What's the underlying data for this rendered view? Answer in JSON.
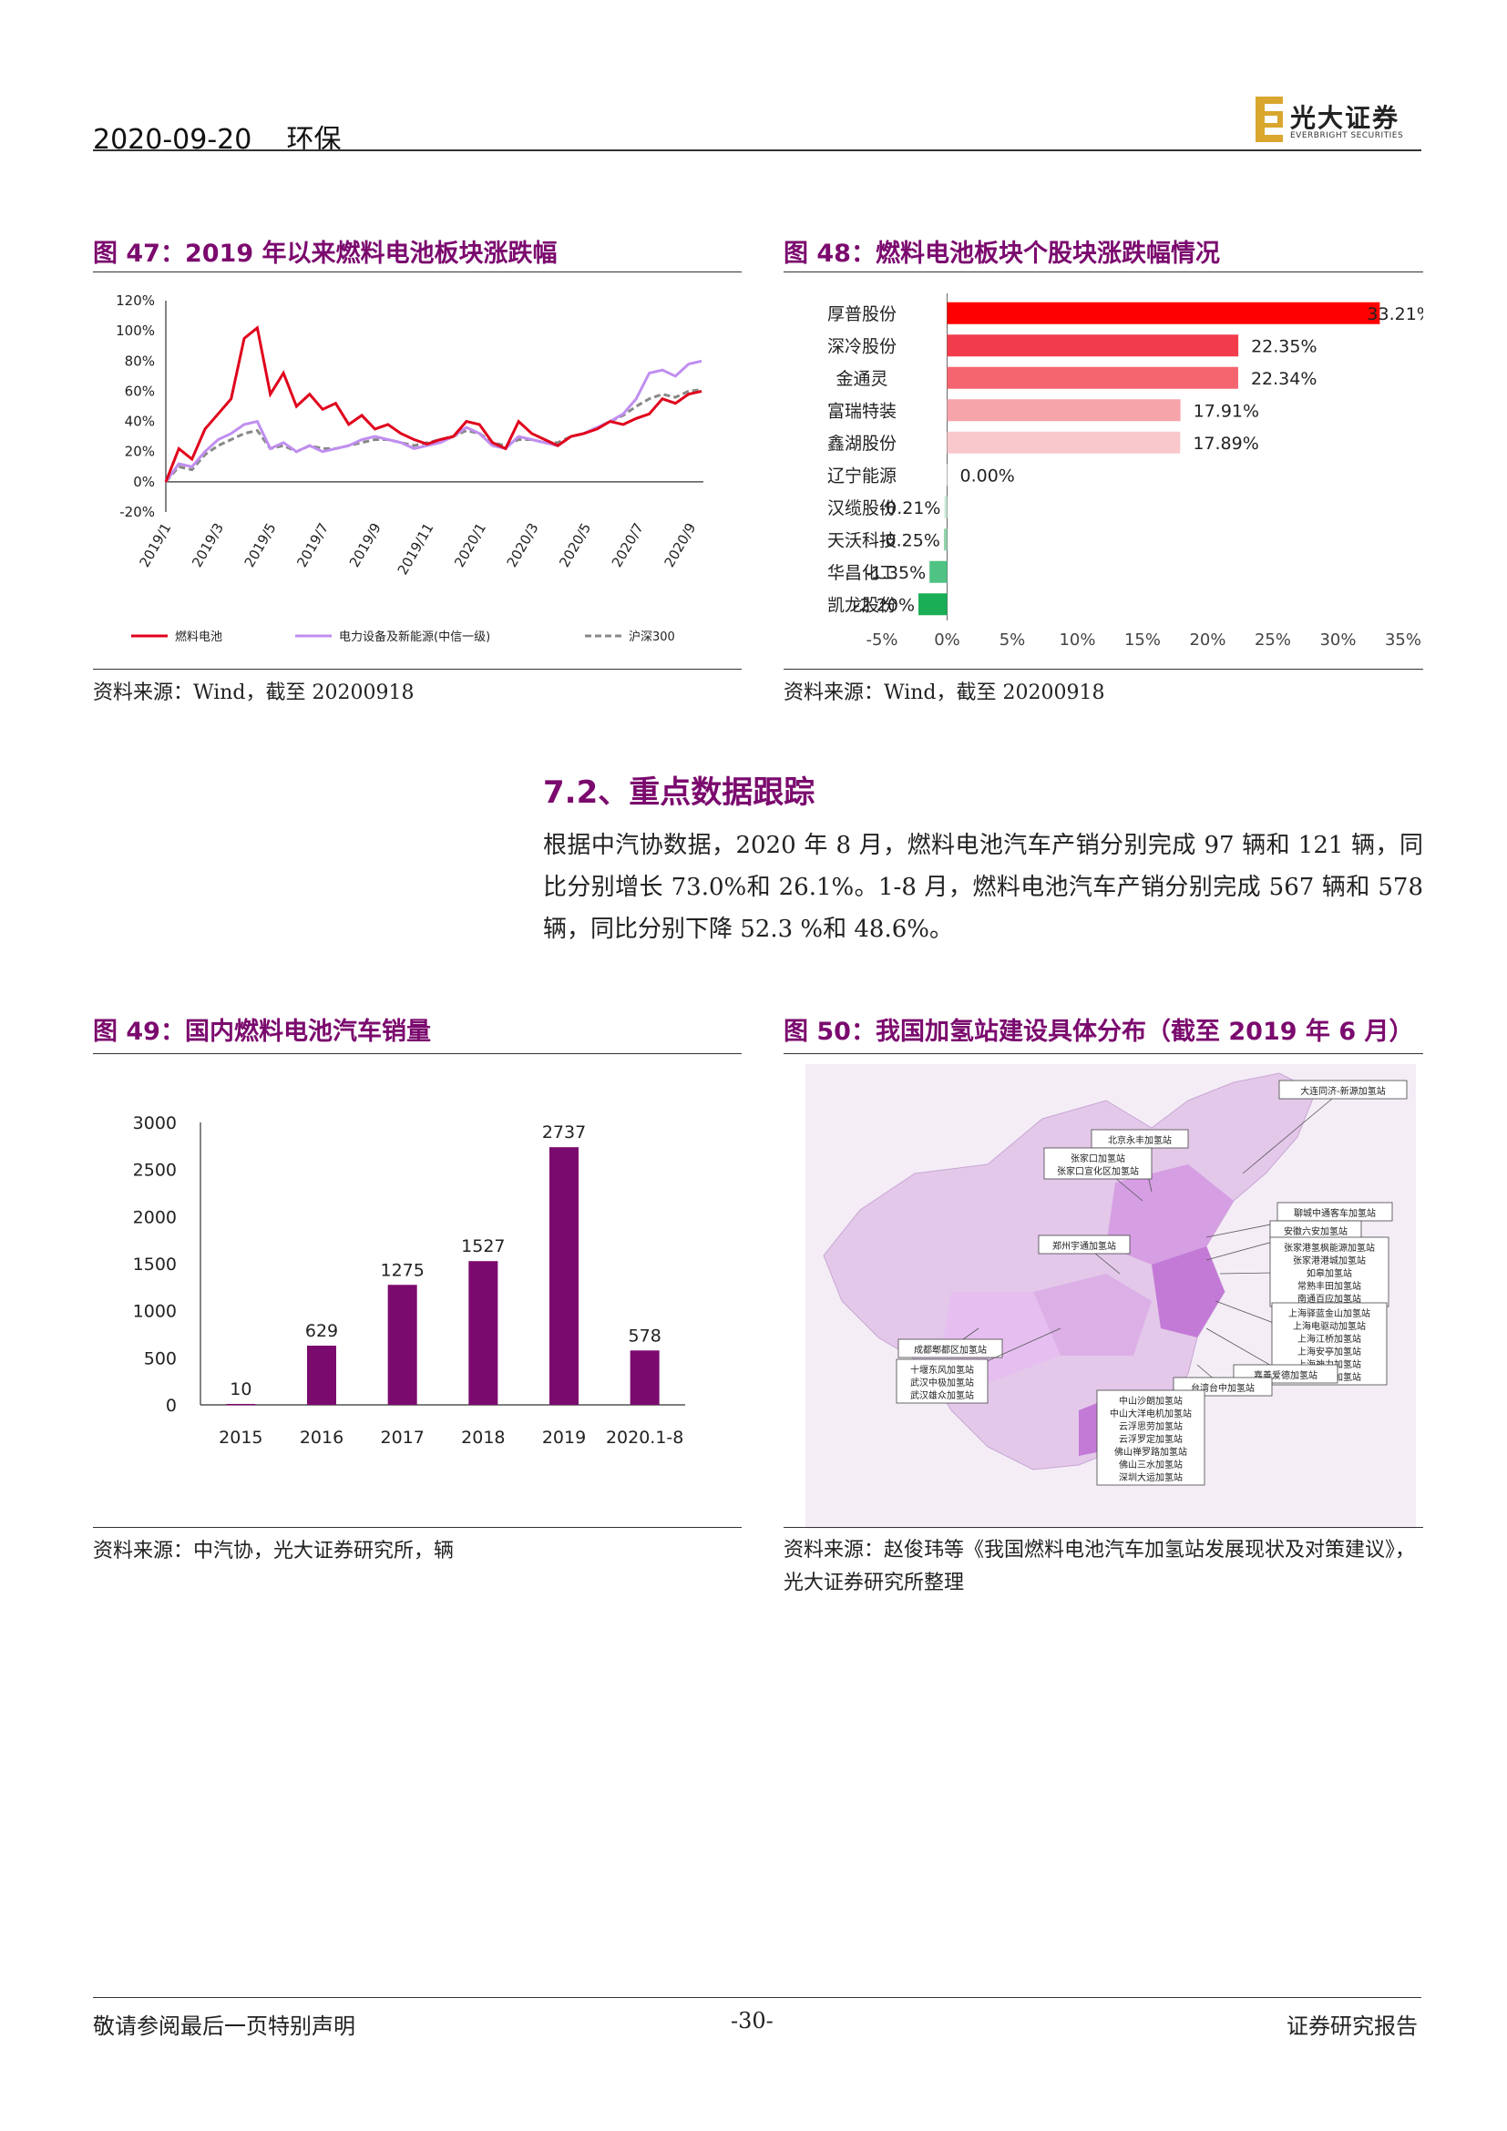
{
  "header": {
    "date": "2020-09-20",
    "sector": "环保",
    "logo_cn": "光大证券",
    "logo_en": "EVERBRIGHT SECURITIES"
  },
  "fig47": {
    "title": "图 47：2019 年以来燃料电池板块涨跌幅",
    "source": "资料来源：Wind，截至 20200918",
    "chart_data": {
      "type": "line",
      "ylim": [
        -20,
        120
      ],
      "yticks": [
        "120%",
        "100%",
        "80%",
        "60%",
        "40%",
        "20%",
        "0%",
        "-20%"
      ],
      "xticks": [
        "2019/1",
        "2019/3",
        "2019/5",
        "2019/7",
        "2019/9",
        "2019/11",
        "2020/1",
        "2020/3",
        "2020/5",
        "2020/7",
        "2020/9"
      ],
      "series": [
        {
          "name": "燃料电池",
          "color": "#e0001b",
          "values": [
            0,
            22,
            15,
            35,
            45,
            55,
            95,
            102,
            58,
            72,
            50,
            58,
            48,
            52,
            38,
            44,
            35,
            38,
            32,
            28,
            25,
            28,
            30,
            40,
            38,
            26,
            22,
            40,
            32,
            28,
            24,
            30,
            32,
            35,
            40,
            38,
            42,
            45,
            55,
            52,
            58,
            60
          ]
        },
        {
          "name": "电力设备及新能源(中信一级)",
          "color": "#c08ef0",
          "values": [
            0,
            12,
            10,
            20,
            28,
            32,
            38,
            40,
            22,
            26,
            20,
            24,
            20,
            22,
            24,
            28,
            30,
            28,
            26,
            22,
            24,
            26,
            30,
            36,
            32,
            24,
            22,
            30,
            28,
            26,
            24,
            30,
            32,
            36,
            40,
            45,
            55,
            72,
            74,
            70,
            78,
            80
          ]
        },
        {
          "name": "沪深300",
          "color": "#888888",
          "values": [
            0,
            10,
            8,
            18,
            24,
            28,
            32,
            34,
            22,
            24,
            20,
            24,
            22,
            22,
            24,
            26,
            28,
            28,
            26,
            24,
            26,
            28,
            30,
            34,
            32,
            26,
            24,
            28,
            28,
            26,
            26,
            30,
            32,
            36,
            40,
            44,
            50,
            55,
            58,
            56,
            60,
            61
          ]
        }
      ]
    }
  },
  "fig48": {
    "title": "图 48：燃料电池板块个股块涨跌幅情况",
    "source": "资料来源：Wind，截至 20200918",
    "chart_data": {
      "type": "bar",
      "orientation": "horizontal",
      "categories": [
        "厚普股份",
        "深冷股份",
        "金通灵",
        "富瑞特装",
        "鑫湖股份",
        "辽宁能源",
        "汉缆股份",
        "天沃科技",
        "华昌化工",
        "凯龙股份"
      ],
      "values": [
        33.21,
        22.35,
        22.34,
        17.91,
        17.89,
        0.0,
        -0.21,
        -0.25,
        -1.35,
        -2.2
      ],
      "labels": [
        "33.21%",
        "22.35%",
        "22.34%",
        "17.91%",
        "17.89%",
        "0.00%",
        "-0.21%",
        "-0.25%",
        "-1.35%",
        "-2.20%"
      ],
      "colors": [
        "#ff0000",
        "#f23c4b",
        "#f56570",
        "#f7a3aa",
        "#f9c8cc",
        "#ffffff",
        "#c9ead7",
        "#93d5ad",
        "#4fc383",
        "#1aae57"
      ],
      "xlim": [
        -5,
        35
      ],
      "xticks": [
        "-5%",
        "0%",
        "5%",
        "10%",
        "15%",
        "20%",
        "25%",
        "30%",
        "35%"
      ]
    }
  },
  "section": {
    "title": "7.2、重点数据跟踪",
    "paragraph": "根据中汽协数据，2020 年 8 月，燃料电池汽车产销分别完成 97 辆和 121 辆，同比分别增长 73.0%和 26.1%。1-8 月，燃料电池汽车产销分别完成 567 辆和 578 辆，同比分别下降 52.3 %和 48.6%。"
  },
  "fig49": {
    "title": "图 49：国内燃料电池汽车销量",
    "source": "资料来源：中汽协，光大证券研究所，辆",
    "chart_data": {
      "type": "bar",
      "categories": [
        "2015",
        "2016",
        "2017",
        "2018",
        "2019",
        "2020.1-8"
      ],
      "values": [
        10,
        629,
        1275,
        1527,
        2737,
        578
      ],
      "ylim": [
        0,
        3000
      ],
      "yticks": [
        "3000",
        "2500",
        "2000",
        "1500",
        "1000",
        "500",
        "0"
      ],
      "color": "#7b0a6e"
    }
  },
  "fig50": {
    "title": "图 50：我国加氢站建设具体分布（截至 2019 年 6 月）",
    "source": "资料来源：赵俊玮等《我国燃料电池汽车加氢站发展现状及对策建议》，光大证券研究所整理",
    "labels": [
      "大连同济-新源加氢站",
      "北京永丰加氢站",
      "张家口加氢站\n张家口宣化区加氢站",
      "聊城中通客车加氢站",
      "安徽六安加氢站",
      "张家港氢枫能源加氢站\n张家港港城加氢站\n如皋加氢站\n常熟丰田加氢站\n南通百应加氢站",
      "郑州宇通加氢站",
      "上海驿蓝金山加氢站\n上海电驱动加氢站\n上海江桥加氢站\n上海安亭加氢站\n上海神力加氢站\n浙江锋源加氢站",
      "成都郫都区加氢站",
      "十堰东风加氢站\n武汉中极加氢站\n武汉雄众加氢站",
      "嘉善爱德加氢站",
      "台湾台中加氢站",
      "中山沙朗加氢站\n中山大洋电机加氢站\n云浮思劳加氢站\n云浮罗定加氢站\n佛山禅罗路加氢站\n佛山三水加氢站\n深圳大运加氢站"
    ]
  },
  "footer": {
    "left": "敬请参阅最后一页特别声明",
    "page": "-30-",
    "right": "证券研究报告"
  }
}
